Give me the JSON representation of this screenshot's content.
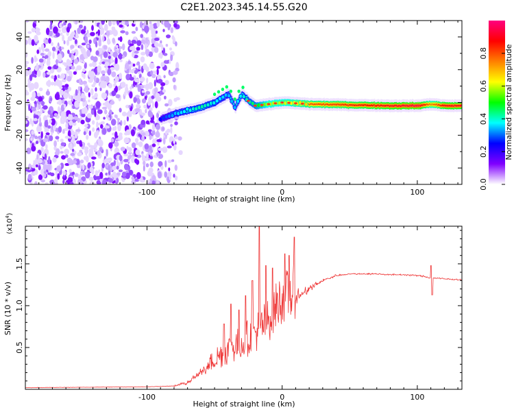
{
  "title": "C2E1.2023.345.14.55.G20",
  "chart_data": [
    {
      "type": "heatmap",
      "xlabel": "Height of straight line (km)",
      "ylabel": "Frequency (Hz)",
      "xlim": [
        -190,
        133
      ],
      "ylim": [
        -50,
        50
      ],
      "xticks": [
        -100,
        0,
        100
      ],
      "yticks": [
        -40,
        -20,
        0,
        20,
        40
      ],
      "colorbar": {
        "label": "Normalized spectral amplitude",
        "range": [
          0,
          1
        ],
        "ticks": [
          "0.0",
          "0.2",
          "0.4",
          "0.6",
          "0.8"
        ],
        "colors": [
          "#ffffff",
          "#8000ff",
          "#0000ff",
          "#00ffff",
          "#00ff00",
          "#ffff00",
          "#ff8000",
          "#ff0000",
          "#ff0080"
        ]
      },
      "noise_region_x": [
        -190,
        -75
      ],
      "ridge": {
        "x": [
          -90,
          -80,
          -70,
          -60,
          -50,
          -40,
          -35,
          -30,
          -25,
          -20,
          -10,
          0,
          20,
          50,
          80,
          100,
          110,
          120,
          133
        ],
        "freq": [
          -10,
          -7,
          -5,
          -3,
          0,
          5,
          -3,
          5,
          1,
          -2,
          -1,
          0,
          -1,
          -1.5,
          -2,
          -2,
          -1,
          -2,
          -2
        ],
        "amplitude": [
          0.3,
          0.4,
          0.45,
          0.5,
          0.45,
          0.4,
          0.4,
          0.45,
          0.5,
          0.55,
          0.7,
          0.7,
          0.8,
          0.85,
          0.9,
          0.95,
          0.75,
          0.9,
          0.9
        ]
      }
    },
    {
      "type": "line",
      "xlabel": "Height of straight line (km)",
      "ylabel": "SNR (10 * v/v)",
      "multiplier": "(x10",
      "multiplier_exp": "4",
      "multiplier_close": ")",
      "xlim": [
        -190,
        133
      ],
      "ylim": [
        0,
        1.95
      ],
      "xticks": [
        -100,
        0,
        100
      ],
      "yticks": [
        "0.5",
        "1.0",
        "1.5"
      ],
      "color": "#ee3333",
      "series": [
        {
          "x": [
            -190,
            -100,
            -80,
            -70,
            -60,
            -50,
            -40,
            -30,
            -20,
            -10,
            -5,
            0,
            10,
            20,
            30,
            40,
            50,
            60,
            70,
            80,
            90,
            100,
            105,
            110,
            115,
            120,
            133
          ],
          "y": [
            0.02,
            0.03,
            0.04,
            0.08,
            0.2,
            0.32,
            0.42,
            0.5,
            0.6,
            0.75,
            0.9,
            1.0,
            1.08,
            1.2,
            1.3,
            1.36,
            1.38,
            1.38,
            1.38,
            1.37,
            1.37,
            1.36,
            1.35,
            1.33,
            1.33,
            1.32,
            1.31
          ],
          "spikes": [
            {
              "x": -43,
              "y": 0.78
            },
            {
              "x": -38,
              "y": 1.02
            },
            {
              "x": -32,
              "y": 0.95
            },
            {
              "x": -27,
              "y": 1.12
            },
            {
              "x": -22,
              "y": 1.3
            },
            {
              "x": -17,
              "y": 1.95
            },
            {
              "x": -12,
              "y": 1.48
            },
            {
              "x": -7,
              "y": 1.45
            },
            {
              "x": 2,
              "y": 1.62
            },
            {
              "x": 5,
              "y": 1.6
            },
            {
              "x": 9,
              "y": 1.82
            },
            {
              "x": 110,
              "y": 1.48
            },
            {
              "x": 111,
              "y": 1.13
            }
          ]
        }
      ]
    }
  ]
}
